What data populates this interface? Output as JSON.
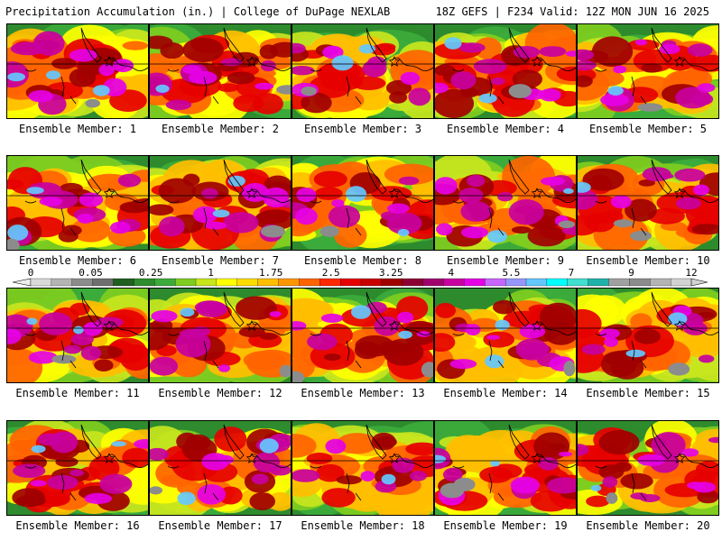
{
  "header": {
    "title": "Precipitation Accumulation (in.) | College of DuPage NEXLAB",
    "valid": "18Z GEFS | F234 Valid: 12Z MON JUN 16 2025"
  },
  "members": [
    {
      "label": "Ensemble Member: 1"
    },
    {
      "label": "Ensemble Member: 2"
    },
    {
      "label": "Ensemble Member: 3"
    },
    {
      "label": "Ensemble Member: 4"
    },
    {
      "label": "Ensemble Member: 5"
    },
    {
      "label": "Ensemble Member: 6"
    },
    {
      "label": "Ensemble Member: 7"
    },
    {
      "label": "Ensemble Member: 8"
    },
    {
      "label": "Ensemble Member: 9"
    },
    {
      "label": "Ensemble Member: 10"
    },
    {
      "label": "Ensemble Member: 11"
    },
    {
      "label": "Ensemble Member: 12"
    },
    {
      "label": "Ensemble Member: 13"
    },
    {
      "label": "Ensemble Member: 14"
    },
    {
      "label": "Ensemble Member: 15"
    },
    {
      "label": "Ensemble Member: 16"
    },
    {
      "label": "Ensemble Member: 17"
    },
    {
      "label": "Ensemble Member: 18"
    },
    {
      "label": "Ensemble Member: 19"
    },
    {
      "label": "Ensemble Member: 20"
    }
  ],
  "colorbar": {
    "tick_labels": [
      "0",
      "0.05",
      "0.25",
      "1",
      "1.75",
      "2.5",
      "3.25",
      "4",
      "5.5",
      "7",
      "9",
      "12"
    ],
    "colors": [
      "#d9d9d9",
      "#b4b4b4",
      "#8c8c8c",
      "#6e6e6e",
      "#1f5f1f",
      "#2e8b2e",
      "#3cab3c",
      "#7fcd20",
      "#c8e61e",
      "#ffff00",
      "#ffdc00",
      "#ffbe00",
      "#ff9600",
      "#ff6400",
      "#ff2800",
      "#e60000",
      "#c80000",
      "#a00000",
      "#8c0032",
      "#a0006e",
      "#c800a0",
      "#e600e6",
      "#c864ff",
      "#9696ff",
      "#64c8ff",
      "#00ffff",
      "#40e0d0",
      "#20b2aa",
      "#a0a0a0",
      "#8c8c8c",
      "#b4b4b4",
      "#d2d2d2"
    ]
  }
}
